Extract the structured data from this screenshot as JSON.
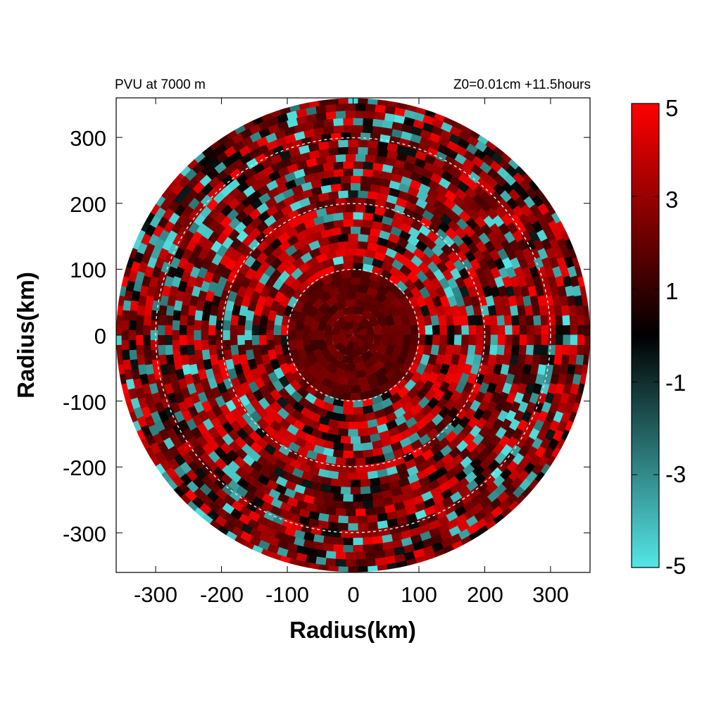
{
  "chart_data": {
    "type": "heatmap",
    "title_left": "PVU at  7000 m",
    "title_right": "Z0=0.01cm  +11.5hours",
    "xlabel": "Radius(km)",
    "ylabel": "Radius(km)",
    "xlim": [
      -360,
      360
    ],
    "ylim": [
      -360,
      360
    ],
    "x_ticks": [
      "-300",
      "-200",
      "-100",
      "0",
      "100",
      "200",
      "300"
    ],
    "y_ticks": [
      "300",
      "200",
      "100",
      "0",
      "-100",
      "-200",
      "-300"
    ],
    "grid": false,
    "domain_radius_km": 360,
    "reference_circles_km": [
      100,
      200,
      300
    ],
    "reference_circle_color": "#d8d8d8",
    "colorbar": {
      "range": [
        -5,
        5
      ],
      "tick_labels": [
        "5",
        "3",
        "1",
        "-1",
        "-3",
        "-5"
      ],
      "colors": [
        "#55e6e6",
        "#000000",
        "#ff0000"
      ],
      "placement": "right"
    },
    "colors": {
      "positive": "#ff0000",
      "neutral": "#000000",
      "negative": "#55e6e6"
    }
  }
}
